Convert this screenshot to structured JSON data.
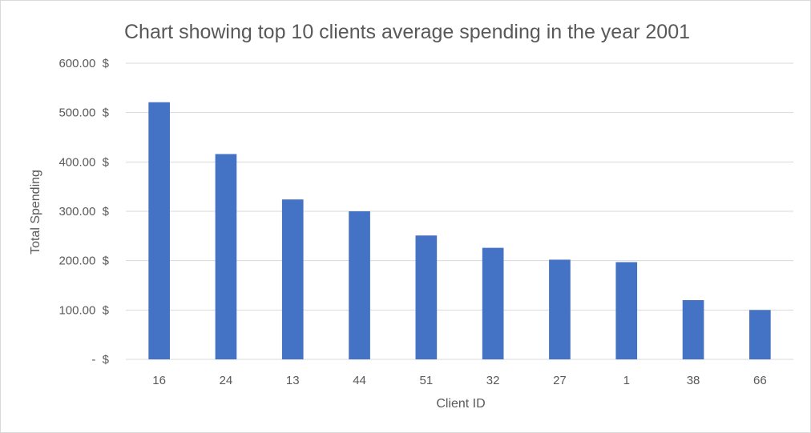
{
  "chart_data": {
    "type": "bar",
    "title": "Chart showing top 10 clients average spending in the year 2001",
    "xlabel": "Client ID",
    "ylabel": "Total Spending",
    "categories": [
      "16",
      "24",
      "13",
      "44",
      "51",
      "32",
      "27",
      "1",
      "38",
      "66"
    ],
    "values": [
      521,
      416,
      324,
      300,
      251,
      226,
      202,
      197,
      120,
      100
    ],
    "ylim": [
      0,
      600
    ],
    "y_ticks": [
      {
        "value": 0,
        "label": "-  $"
      },
      {
        "value": 100,
        "label": "100.00  $"
      },
      {
        "value": 200,
        "label": "200.00  $"
      },
      {
        "value": 300,
        "label": "300.00  $"
      },
      {
        "value": 400,
        "label": "400.00  $"
      },
      {
        "value": 500,
        "label": "500.00  $"
      },
      {
        "value": 600,
        "label": "600.00  $"
      }
    ],
    "grid": true,
    "legend": "none",
    "bar_color": "#4472c4",
    "grid_color": "#d9d9d9"
  }
}
